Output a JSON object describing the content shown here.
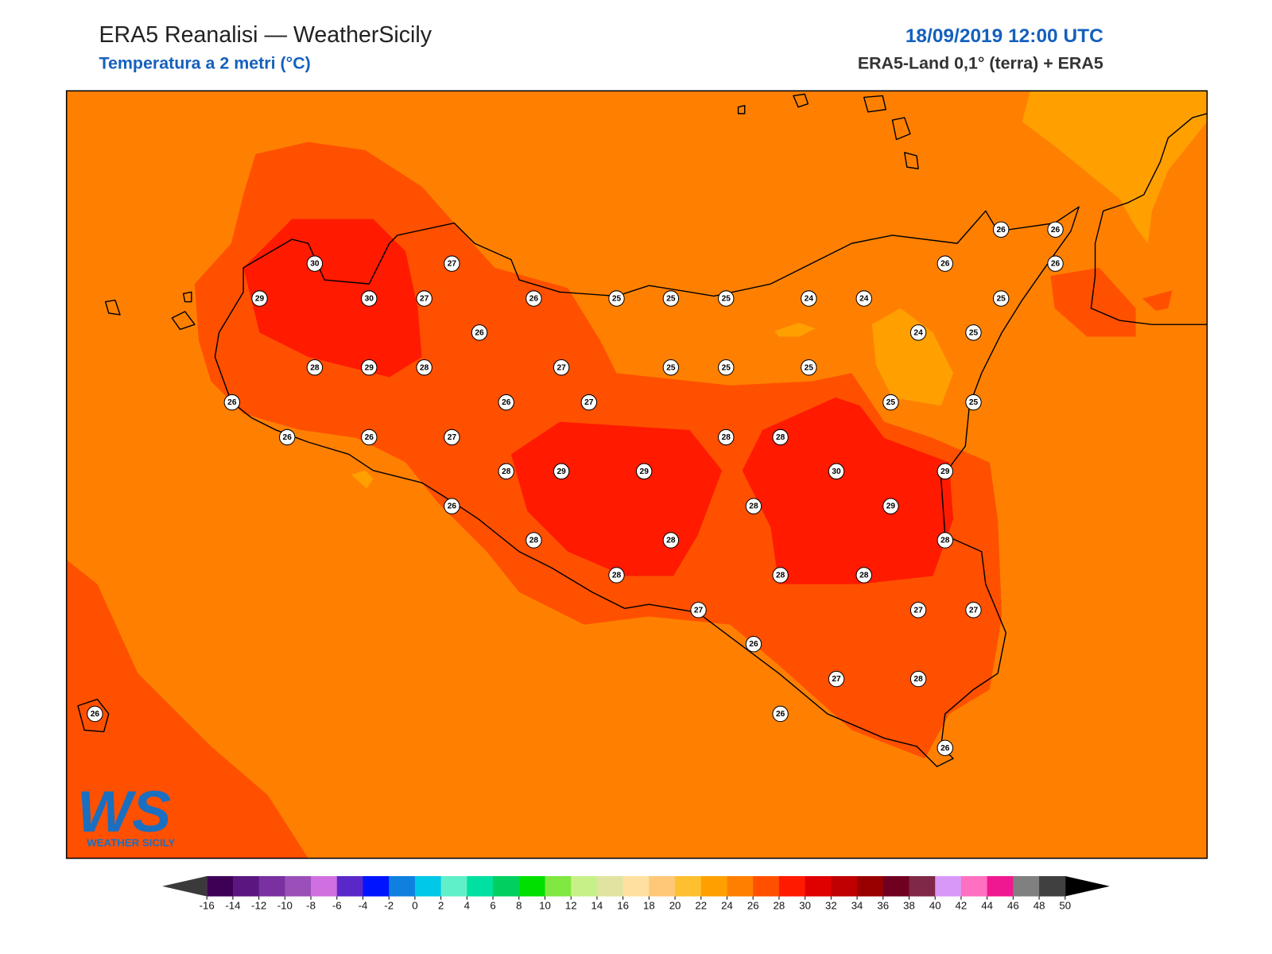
{
  "header": {
    "title": "ERA5 Reanalisi — WeatherSicily",
    "subtitle": "Temperatura a 2 metri (°C)",
    "date": "18/09/2019 12:00 UTC",
    "source": "ERA5-Land 0,1° (terra) + ERA5"
  },
  "logo": {
    "text": "WS",
    "name": "WEATHER SICILY"
  },
  "stations": [
    26,
    26,
    30,
    27,
    26,
    26,
    29,
    30,
    27,
    26,
    25,
    25,
    25,
    24,
    24,
    25,
    26,
    24,
    25,
    28,
    29,
    28,
    27,
    25,
    25,
    25,
    26,
    26,
    27,
    25,
    25,
    26,
    26,
    27,
    28,
    28,
    28,
    29,
    29,
    30,
    29,
    26,
    28,
    29,
    28,
    28,
    28,
    28,
    28,
    28,
    27,
    27,
    27,
    26,
    27,
    28,
    26,
    26,
    26
  ],
  "colorbar": {
    "ticks": [
      -16,
      -14,
      -12,
      -10,
      -8,
      -6,
      -4,
      -2,
      0,
      2,
      4,
      6,
      8,
      10,
      12,
      14,
      16,
      18,
      20,
      22,
      24,
      26,
      28,
      30,
      32,
      34,
      36,
      38,
      40,
      42,
      44,
      46,
      48,
      50
    ],
    "colors": [
      "#3d0055",
      "#5b1680",
      "#7a30a0",
      "#9a50b8",
      "#d070e0",
      "#5a28c8",
      "#0014ff",
      "#1080e0",
      "#00c8e8",
      "#60f0c8",
      "#00e0a0",
      "#00d060",
      "#00e000",
      "#80e840",
      "#c8f088",
      "#e0e4a0",
      "#ffe0a0",
      "#ffc878",
      "#ffc030",
      "#ffa000",
      "#ff8000",
      "#ff5000",
      "#ff1a00",
      "#e00000",
      "#c00000",
      "#980000",
      "#700020",
      "#802848",
      "#d898f8",
      "#ff70c0",
      "#f01890",
      "#808080",
      "#404040"
    ],
    "under_color": "#3a3a3a",
    "over_color": "#000000"
  }
}
